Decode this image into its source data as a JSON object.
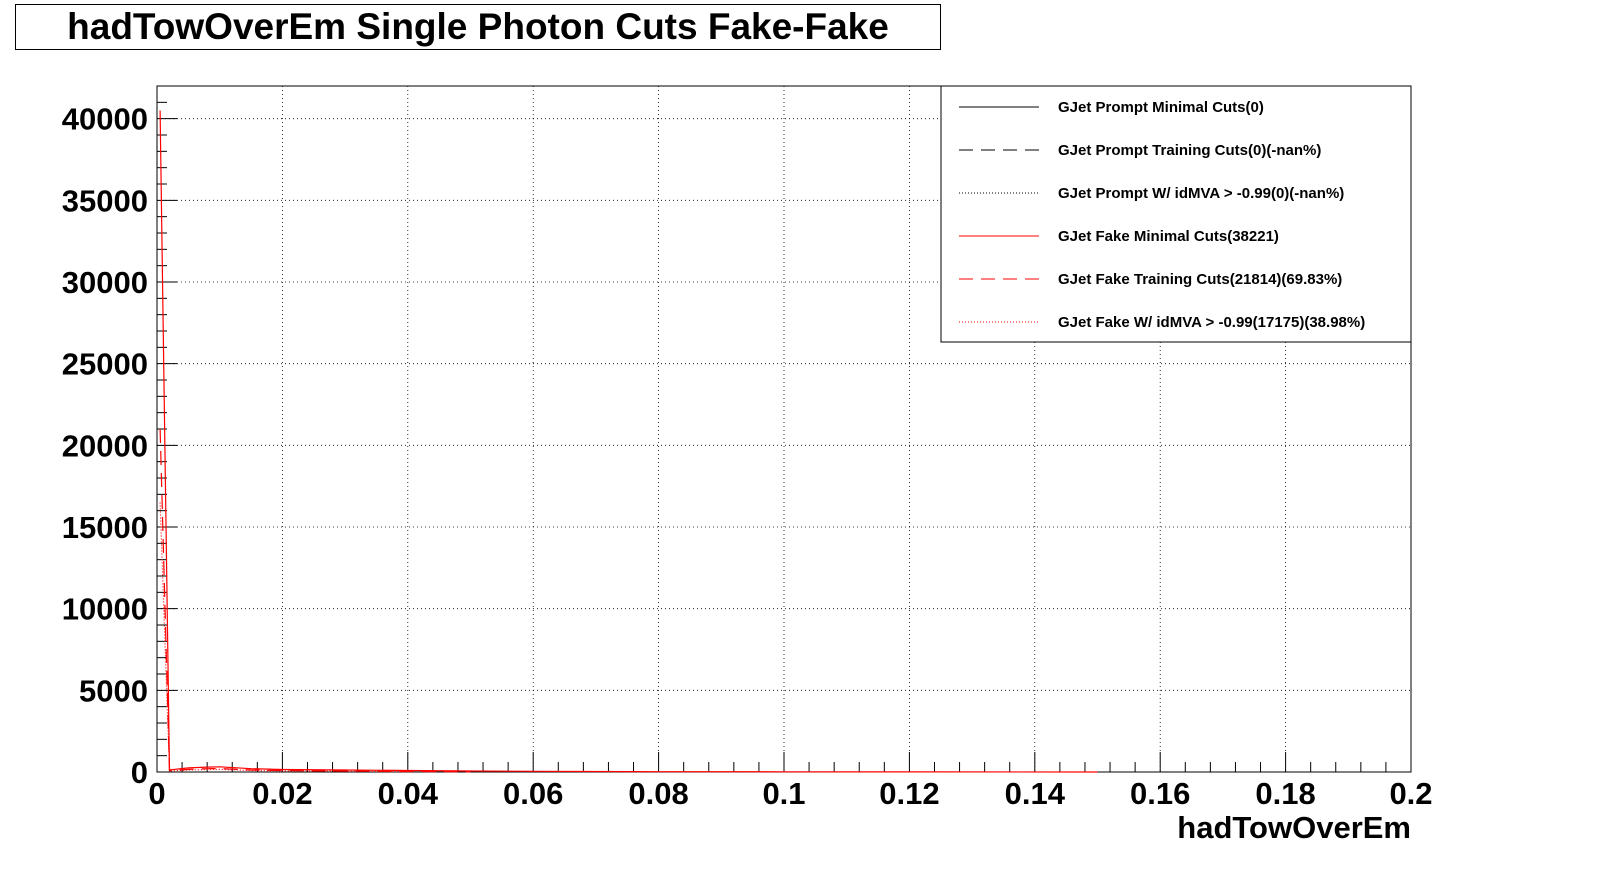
{
  "chart_data": {
    "type": "line",
    "title": "hadTowOverEm Single Photon Cuts Fake-Fake",
    "xlabel": "hadTowOverEm",
    "ylabel": "",
    "xlim": [
      0,
      0.2
    ],
    "ylim": [
      0,
      42000
    ],
    "grid": true,
    "legend_position": "top-right",
    "x_ticks": [
      0,
      0.02,
      0.04,
      0.06,
      0.08,
      0.1,
      0.12,
      0.14,
      0.16,
      0.18,
      0.2
    ],
    "x_tick_labels": [
      "0",
      "0.02",
      "0.04",
      "0.06",
      "0.08",
      "0.1",
      "0.12",
      "0.14",
      "0.16",
      "0.18",
      "0.2"
    ],
    "y_ticks": [
      0,
      5000,
      10000,
      15000,
      20000,
      25000,
      30000,
      35000,
      40000
    ],
    "y_tick_labels": [
      "0",
      "5000",
      "10000",
      "15000",
      "20000",
      "25000",
      "30000",
      "35000",
      "40000"
    ],
    "series": [
      {
        "name": "GJet Prompt Minimal Cuts(0)",
        "color": "#000000",
        "style": "solid",
        "x": [
          0.0005
        ],
        "y": [
          0
        ]
      },
      {
        "name": "GJet Prompt Training Cuts(0)(-nan%)",
        "color": "#000000",
        "style": "dashed",
        "x": [
          0.0005
        ],
        "y": [
          0
        ]
      },
      {
        "name": "GJet Prompt W/ idMVA > -0.99(0)(-nan%)",
        "color": "#000000",
        "style": "dotted",
        "x": [
          0.0005
        ],
        "y": [
          0
        ]
      },
      {
        "name": "GJet Fake Minimal Cuts(38221)",
        "color": "#ff0000",
        "style": "solid",
        "x": [
          0.0005,
          0.002,
          0.005,
          0.008,
          0.01,
          0.015,
          0.02,
          0.03,
          0.04,
          0.05,
          0.06,
          0.08,
          0.1,
          0.12,
          0.15
        ],
        "y": [
          40500,
          120,
          250,
          300,
          320,
          200,
          150,
          120,
          90,
          60,
          40,
          20,
          10,
          5,
          2
        ]
      },
      {
        "name": "GJet Fake Training Cuts(21814)(69.83%)",
        "color": "#ff0000",
        "style": "dashed",
        "x": [
          0.0005,
          0.002,
          0.005,
          0.008,
          0.01,
          0.015,
          0.02,
          0.03,
          0.04,
          0.05
        ],
        "y": [
          21000,
          80,
          160,
          200,
          210,
          120,
          90,
          60,
          30,
          10
        ]
      },
      {
        "name": "GJet Fake W/ idMVA > -0.99(17175)(38.98%)",
        "color": "#ff0000",
        "style": "dotted",
        "x": [
          0.0005,
          0.002,
          0.005,
          0.008,
          0.01,
          0.015,
          0.02,
          0.03,
          0.04
        ],
        "y": [
          16500,
          60,
          120,
          150,
          160,
          90,
          70,
          40,
          20
        ]
      }
    ]
  }
}
